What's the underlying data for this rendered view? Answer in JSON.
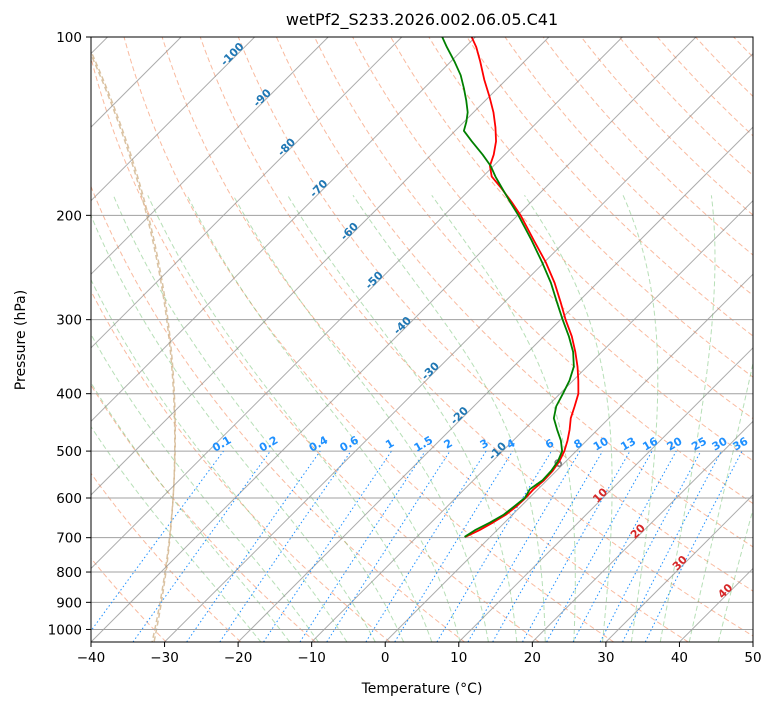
{
  "chart_data": {
    "type": "skew-t",
    "title": "wetPf2_S233.2026.002.06.05.C41",
    "xlabel": "Temperature (°C)",
    "ylabel": "Pressure (hPa)",
    "xlim": [
      -40,
      50
    ],
    "ylim_hpa": [
      1050,
      100
    ],
    "x_ticks": [
      "−40",
      "−30",
      "−20",
      "−10",
      "0",
      "10",
      "20",
      "30",
      "40",
      "50"
    ],
    "y_ticks": [
      {
        "p": 100,
        "label": "100"
      },
      {
        "p": 200,
        "label": "200"
      },
      {
        "p": 300,
        "label": "300"
      },
      {
        "p": 400,
        "label": "400"
      },
      {
        "p": 500,
        "label": "500"
      },
      {
        "p": 600,
        "label": "600"
      },
      {
        "p": 700,
        "label": "700"
      },
      {
        "p": 800,
        "label": "800"
      },
      {
        "p": 900,
        "label": "900"
      },
      {
        "p": 1000,
        "label": "1000"
      }
    ],
    "isotherm_labels": [
      {
        "t": -100,
        "label": "-100"
      },
      {
        "t": -90,
        "label": "-90"
      },
      {
        "t": -80,
        "label": "-80"
      },
      {
        "t": -70,
        "label": "-70"
      },
      {
        "t": -60,
        "label": "-60"
      },
      {
        "t": -50,
        "label": "-50"
      },
      {
        "t": -40,
        "label": "-40"
      },
      {
        "t": -30,
        "label": "-30"
      },
      {
        "t": -20,
        "label": "-20"
      },
      {
        "t": -10,
        "label": "-10"
      }
    ],
    "isotherm_labels_lower": [
      {
        "t": 0,
        "label": "0",
        "p": 530
      },
      {
        "t": 10,
        "label": "10",
        "p": 600
      },
      {
        "t": 20,
        "label": "20",
        "p": 690
      },
      {
        "t": 30,
        "label": "30",
        "p": 780
      },
      {
        "t": 40,
        "label": "40",
        "p": 870
      }
    ],
    "mixing_ratios": [
      {
        "w": 0.1,
        "label": "0.1"
      },
      {
        "w": 0.2,
        "label": "0.2"
      },
      {
        "w": 0.4,
        "label": "0.4"
      },
      {
        "w": 0.6,
        "label": "0.6"
      },
      {
        "w": 1,
        "label": "1"
      },
      {
        "w": 1.5,
        "label": "1.5"
      },
      {
        "w": 2,
        "label": "2"
      },
      {
        "w": 3,
        "label": "3"
      },
      {
        "w": 4,
        "label": "4"
      },
      {
        "w": 6,
        "label": "6"
      },
      {
        "w": 8,
        "label": "8"
      },
      {
        "w": 10,
        "label": "10"
      },
      {
        "w": 13,
        "label": "13"
      },
      {
        "w": 16,
        "label": "16"
      },
      {
        "w": 20,
        "label": "20"
      },
      {
        "w": 25,
        "label": "25"
      },
      {
        "w": 30,
        "label": "30"
      },
      {
        "w": 36,
        "label": "36"
      }
    ],
    "series": [
      {
        "name": "Temperature",
        "color": "#ff0000",
        "points": [
          {
            "p": 698,
            "t": -3.4
          },
          {
            "p": 680,
            "t": -2.4
          },
          {
            "p": 660,
            "t": -1.6
          },
          {
            "p": 640,
            "t": -0.9
          },
          {
            "p": 620,
            "t": -0.6
          },
          {
            "p": 600,
            "t": -0.5
          },
          {
            "p": 580,
            "t": -0.6
          },
          {
            "p": 560,
            "t": -0.4
          },
          {
            "p": 540,
            "t": -0.5
          },
          {
            "p": 520,
            "t": -0.9
          },
          {
            "p": 500,
            "t": -1.6
          },
          {
            "p": 480,
            "t": -2.6
          },
          {
            "p": 460,
            "t": -3.8
          },
          {
            "p": 440,
            "t": -5.2
          },
          {
            "p": 420,
            "t": -6.3
          },
          {
            "p": 400,
            "t": -7.5
          },
          {
            "p": 380,
            "t": -9.3
          },
          {
            "p": 360,
            "t": -11.3
          },
          {
            "p": 340,
            "t": -13.6
          },
          {
            "p": 320,
            "t": -16.2
          },
          {
            "p": 300,
            "t": -19.3
          },
          {
            "p": 280,
            "t": -22.4
          },
          {
            "p": 260,
            "t": -25.8
          },
          {
            "p": 240,
            "t": -29.8
          },
          {
            "p": 220,
            "t": -34.5
          },
          {
            "p": 200,
            "t": -39.6
          },
          {
            "p": 190,
            "t": -42.6
          },
          {
            "p": 180,
            "t": -45.9
          },
          {
            "p": 172,
            "t": -48.8
          },
          {
            "p": 165,
            "t": -50.5
          },
          {
            "p": 158,
            "t": -51.5
          },
          {
            "p": 150,
            "t": -53.0
          },
          {
            "p": 142,
            "t": -55.0
          },
          {
            "p": 134,
            "t": -57.3
          },
          {
            "p": 126,
            "t": -60.0
          },
          {
            "p": 118,
            "t": -63.0
          },
          {
            "p": 110,
            "t": -66.0
          },
          {
            "p": 104,
            "t": -68.5
          },
          {
            "p": 100,
            "t": -70.5
          }
        ]
      },
      {
        "name": "Dewpoint",
        "color": "#008000",
        "points": [
          {
            "p": 698,
            "t": -3.5
          },
          {
            "p": 680,
            "t": -3.0
          },
          {
            "p": 660,
            "t": -2.0
          },
          {
            "p": 640,
            "t": -1.2
          },
          {
            "p": 620,
            "t": -0.9
          },
          {
            "p": 600,
            "t": -0.6
          },
          {
            "p": 580,
            "t": -1.1
          },
          {
            "p": 560,
            "t": -0.6
          },
          {
            "p": 540,
            "t": -0.7
          },
          {
            "p": 520,
            "t": -1.1
          },
          {
            "p": 500,
            "t": -1.9
          },
          {
            "p": 480,
            "t": -3.5
          },
          {
            "p": 460,
            "t": -5.5
          },
          {
            "p": 440,
            "t": -7.5
          },
          {
            "p": 420,
            "t": -8.8
          },
          {
            "p": 400,
            "t": -9.6
          },
          {
            "p": 380,
            "t": -10.5
          },
          {
            "p": 360,
            "t": -11.8
          },
          {
            "p": 340,
            "t": -13.9
          },
          {
            "p": 320,
            "t": -16.6
          },
          {
            "p": 300,
            "t": -19.7
          },
          {
            "p": 280,
            "t": -22.9
          },
          {
            "p": 260,
            "t": -26.3
          },
          {
            "p": 240,
            "t": -30.3
          },
          {
            "p": 220,
            "t": -34.8
          },
          {
            "p": 200,
            "t": -39.9
          },
          {
            "p": 190,
            "t": -42.8
          },
          {
            "p": 180,
            "t": -45.8
          },
          {
            "p": 172,
            "t": -48.3
          },
          {
            "p": 165,
            "t": -50.4
          },
          {
            "p": 158,
            "t": -53.0
          },
          {
            "p": 150,
            "t": -56.3
          },
          {
            "p": 144,
            "t": -58.8
          },
          {
            "p": 139,
            "t": -59.7
          },
          {
            "p": 134,
            "t": -60.8
          },
          {
            "p": 128,
            "t": -62.6
          },
          {
            "p": 122,
            "t": -64.6
          },
          {
            "p": 116,
            "t": -66.8
          },
          {
            "p": 110,
            "t": -69.5
          },
          {
            "p": 104,
            "t": -72.5
          },
          {
            "p": 100,
            "t": -74.5
          }
        ]
      }
    ]
  }
}
